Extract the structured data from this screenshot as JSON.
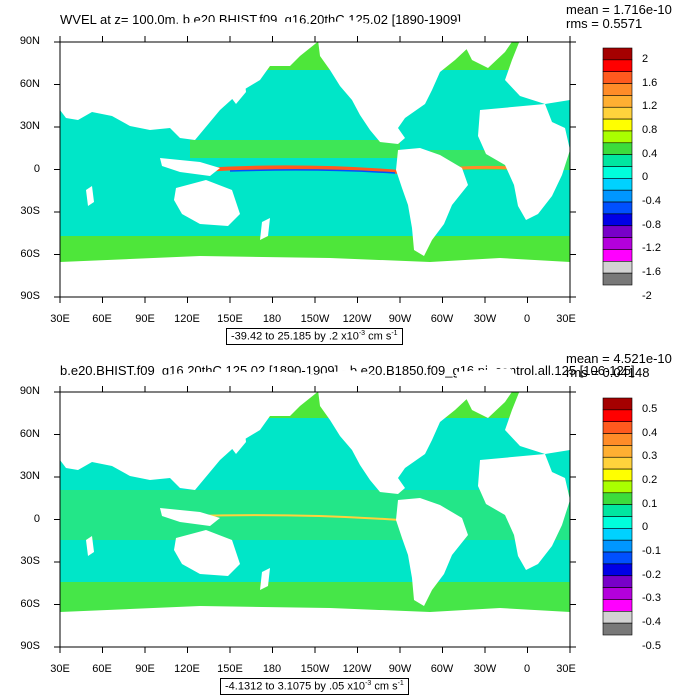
{
  "panels": [
    {
      "title": "WVEL at z= 100.0m, b.e20.BHIST.f09_g16.20thC.125.02 [1890-1909]",
      "mean": "mean = 1.716e-10",
      "rms": "rms = 0.5571",
      "range_text": "-39.42 to 25.185 by .2 x10",
      "range_exp": "-3",
      "range_unit": " cm s",
      "range_unit_exp": "-1",
      "colorbar_labels": [
        "2",
        "1.6",
        "1.2",
        "0.8",
        "0.4",
        "0",
        "-0.4",
        "-0.8",
        "-1.2",
        "-1.6",
        "-2"
      ]
    },
    {
      "title": "b.e20.BHIST.f09_g16.20thC.125.02 [1890-1909] - b.e20.B1850.f09_g16.pi_control.all.125 [106-125]",
      "mean": "mean = 4.521e-10",
      "rms": "rms = 0.04148",
      "range_text": "-4.1312 to 3.1075 by .05 x10",
      "range_exp": "-3",
      "range_unit": " cm s",
      "range_unit_exp": "-1",
      "colorbar_labels": [
        "0.5",
        "0.4",
        "0.3",
        "0.2",
        "0.1",
        "0",
        "-0.1",
        "-0.2",
        "-0.3",
        "-0.4",
        "-0.5"
      ]
    }
  ],
  "lat_labels": [
    "90N",
    "60N",
    "30N",
    "0",
    "30S",
    "60S",
    "90S"
  ],
  "lon_labels": [
    "30E",
    "60E",
    "90E",
    "120E",
    "150E",
    "180",
    "150W",
    "120W",
    "90W",
    "60W",
    "30W",
    "0",
    "30E"
  ],
  "colorbar_colors": [
    "#a50000",
    "#ff0000",
    "#ff5a1e",
    "#ff8c28",
    "#ffaf32",
    "#ffd23c",
    "#ffff00",
    "#aaff00",
    "#3cdc3c",
    "#00e6a0",
    "#00ffdc",
    "#00d2ff",
    "#0096ff",
    "#0050ff",
    "#0000e6",
    "#7800c8",
    "#b400dc",
    "#ff00ff",
    "#d2d2d2",
    "#787878"
  ],
  "map_colors": {
    "ocean": "#00e6c8",
    "pos": "#4ee63a",
    "land": "#ffffff"
  }
}
